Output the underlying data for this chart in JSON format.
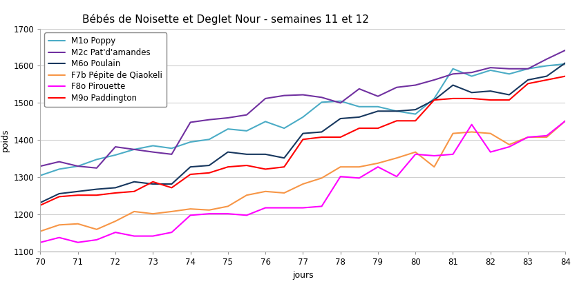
{
  "title": "Bébés de Noisette et Deglet Nour - semaines 11 et 12",
  "xlabel": "jours",
  "ylabel": "poids",
  "xlim": [
    70,
    84
  ],
  "ylim": [
    1100,
    1700
  ],
  "xticks": [
    70,
    71,
    72,
    73,
    74,
    75,
    76,
    77,
    78,
    79,
    80,
    81,
    82,
    83,
    84
  ],
  "yticks": [
    1100,
    1200,
    1300,
    1400,
    1500,
    1600,
    1700
  ],
  "series": [
    {
      "label": "M1o Poppy",
      "color": "#4bacc6",
      "linewidth": 1.5,
      "data": {
        "x": [
          70,
          70.5,
          71,
          71.5,
          72,
          72.5,
          73,
          73.5,
          74,
          74.5,
          75,
          75.5,
          76,
          76.5,
          77,
          77.5,
          78,
          78.5,
          79,
          79.5,
          80,
          80.5,
          81,
          81.5,
          82,
          82.5,
          83,
          83.5,
          84
        ],
        "y": [
          1305,
          1322,
          1330,
          1348,
          1360,
          1375,
          1385,
          1378,
          1395,
          1402,
          1430,
          1425,
          1450,
          1432,
          1462,
          1502,
          1505,
          1490,
          1490,
          1478,
          1470,
          1512,
          1592,
          1572,
          1588,
          1578,
          1592,
          1600,
          1605
        ]
      }
    },
    {
      "label": "M2c Pat'd'amandes",
      "color": "#7030a0",
      "linewidth": 1.5,
      "data": {
        "x": [
          70,
          70.5,
          71,
          71.5,
          72,
          72.5,
          73,
          73.5,
          74,
          74.5,
          75,
          75.5,
          76,
          76.5,
          77,
          77.5,
          78,
          78.5,
          79,
          79.5,
          80,
          80.5,
          81,
          81.5,
          82,
          82.5,
          83,
          83.5,
          84
        ],
        "y": [
          1330,
          1342,
          1330,
          1325,
          1382,
          1375,
          1368,
          1362,
          1448,
          1455,
          1460,
          1468,
          1512,
          1520,
          1522,
          1515,
          1500,
          1538,
          1518,
          1542,
          1548,
          1562,
          1578,
          1582,
          1595,
          1592,
          1592,
          1618,
          1642
        ]
      }
    },
    {
      "label": "M6o Poulain",
      "color": "#17375e",
      "linewidth": 1.5,
      "data": {
        "x": [
          70,
          70.5,
          71,
          71.5,
          72,
          72.5,
          73,
          73.5,
          74,
          74.5,
          75,
          75.5,
          76,
          76.5,
          77,
          77.5,
          78,
          78.5,
          79,
          79.5,
          80,
          80.5,
          81,
          81.5,
          82,
          82.5,
          83,
          83.5,
          84
        ],
        "y": [
          1232,
          1256,
          1262,
          1268,
          1272,
          1288,
          1282,
          1282,
          1328,
          1332,
          1368,
          1362,
          1362,
          1352,
          1418,
          1422,
          1458,
          1462,
          1478,
          1478,
          1482,
          1508,
          1548,
          1528,
          1532,
          1522,
          1562,
          1572,
          1608
        ]
      }
    },
    {
      "label": "F7b Pépite de Qiaokeli",
      "color": "#f79646",
      "linewidth": 1.5,
      "data": {
        "x": [
          70,
          70.5,
          71,
          71.5,
          72,
          72.5,
          73,
          73.5,
          74,
          74.5,
          75,
          75.5,
          76,
          76.5,
          77,
          77.5,
          78,
          78.5,
          79,
          79.5,
          80,
          80.5,
          81,
          81.5,
          82,
          82.5,
          83,
          83.5,
          84
        ],
        "y": [
          1155,
          1172,
          1175,
          1160,
          1182,
          1208,
          1202,
          1208,
          1215,
          1212,
          1222,
          1252,
          1262,
          1258,
          1282,
          1298,
          1328,
          1328,
          1338,
          1352,
          1368,
          1328,
          1418,
          1422,
          1418,
          1388,
          1408,
          1408,
          1452
        ]
      }
    },
    {
      "label": "F8o Pirouette",
      "color": "#ff00ff",
      "linewidth": 1.5,
      "data": {
        "x": [
          70,
          70.5,
          71,
          71.5,
          72,
          72.5,
          73,
          73.5,
          74,
          74.5,
          75,
          75.5,
          76,
          76.5,
          77,
          77.5,
          78,
          78.5,
          79,
          79.5,
          80,
          80.5,
          81,
          81.5,
          82,
          82.5,
          83,
          83.5,
          84
        ],
        "y": [
          1125,
          1138,
          1125,
          1132,
          1152,
          1142,
          1142,
          1152,
          1198,
          1202,
          1202,
          1198,
          1218,
          1218,
          1218,
          1222,
          1302,
          1298,
          1328,
          1302,
          1362,
          1358,
          1362,
          1442,
          1368,
          1382,
          1408,
          1412,
          1452
        ]
      }
    },
    {
      "label": "M9o Paddington",
      "color": "#ff0000",
      "linewidth": 1.5,
      "data": {
        "x": [
          70,
          70.5,
          71,
          71.5,
          72,
          72.5,
          73,
          73.5,
          74,
          74.5,
          75,
          75.5,
          76,
          76.5,
          77,
          77.5,
          78,
          78.5,
          79,
          79.5,
          80,
          80.5,
          81,
          81.5,
          82,
          82.5,
          83,
          83.5,
          84
        ],
        "y": [
          1225,
          1248,
          1252,
          1252,
          1258,
          1262,
          1288,
          1272,
          1308,
          1312,
          1328,
          1332,
          1322,
          1328,
          1402,
          1408,
          1408,
          1432,
          1432,
          1452,
          1452,
          1508,
          1512,
          1512,
          1508,
          1508,
          1552,
          1562,
          1572
        ]
      }
    }
  ],
  "legend": {
    "loc": "upper left",
    "fontsize": 8.5
  },
  "title_fontsize": 11,
  "axis_label_fontsize": 9,
  "tick_fontsize": 8.5,
  "figure_width": 8.35,
  "figure_height": 4.15,
  "dpi": 100
}
